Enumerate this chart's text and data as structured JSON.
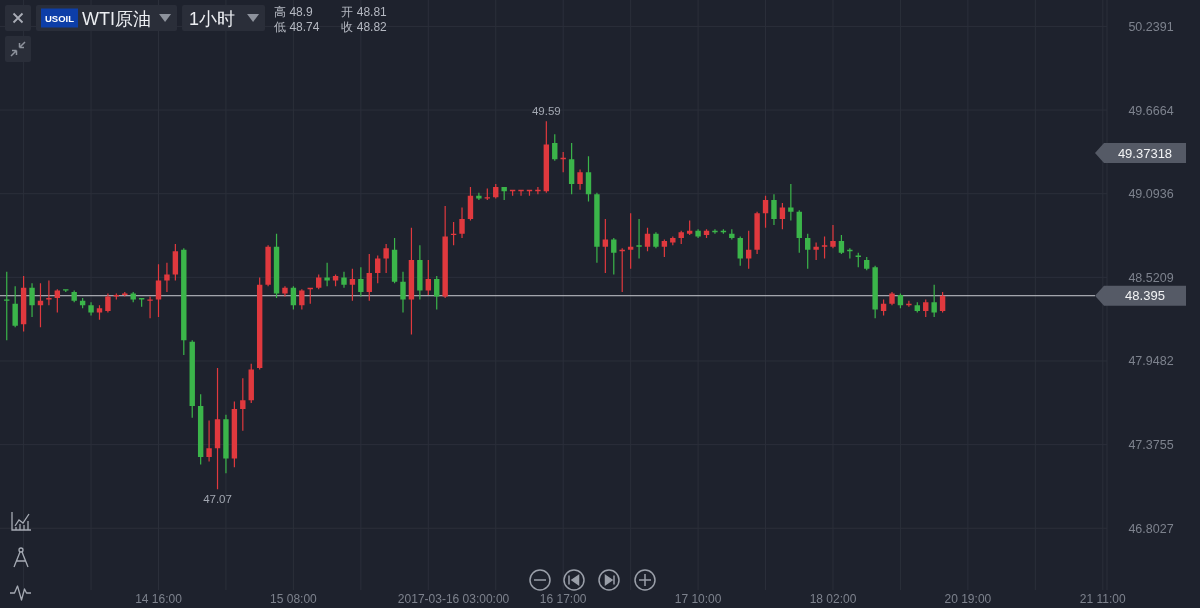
{
  "chart_data": {
    "type": "candlestick",
    "title": "WTI原油",
    "subtitle": "1小时",
    "categories": [
      null,
      null,
      null,
      null,
      null,
      null,
      null,
      null,
      null,
      null,
      null,
      null,
      null,
      null,
      null,
      null,
      null,
      null,
      "14 16:00",
      null,
      null,
      null,
      null,
      null,
      null,
      null,
      null,
      null,
      null,
      null,
      null,
      null,
      null,
      null,
      "15 08:00",
      null,
      null,
      null,
      null,
      null,
      null,
      null,
      null,
      null,
      null,
      null,
      null,
      null,
      null,
      null,
      null,
      null,
      null,
      "2017-03-16 03:00:00",
      null,
      null,
      null,
      null,
      null,
      null,
      null,
      null,
      null,
      null,
      null,
      null,
      "16 17:00",
      null,
      null,
      null,
      null,
      null,
      null,
      null,
      null,
      null,
      null,
      null,
      null,
      null,
      null,
      null,
      "17 10:00",
      null,
      null,
      null,
      null,
      null,
      null,
      null,
      null,
      null,
      null,
      null,
      null,
      null,
      null,
      null,
      "18 02:00",
      null,
      null,
      null,
      null,
      null,
      null,
      null,
      null,
      null,
      null,
      null,
      null,
      null,
      null,
      null,
      "20 19:00",
      null,
      null,
      null,
      null,
      null,
      null,
      null,
      null,
      null,
      null,
      null,
      null,
      null,
      null,
      null,
      "21 11:00"
    ],
    "ohlc": [
      [
        48.37,
        48.56,
        48.09,
        48.36
      ],
      [
        48.34,
        48.46,
        48.18,
        48.19
      ],
      [
        48.2,
        48.53,
        48.15,
        48.45
      ],
      [
        48.45,
        48.48,
        48.25,
        48.33
      ],
      [
        48.33,
        48.48,
        48.18,
        48.36
      ],
      [
        48.37,
        48.5,
        48.33,
        48.38
      ],
      [
        48.38,
        48.44,
        48.28,
        48.43
      ],
      [
        48.44,
        48.44,
        48.42,
        48.43
      ],
      [
        48.42,
        48.43,
        48.35,
        48.36
      ],
      [
        48.36,
        48.38,
        48.31,
        48.33
      ],
      [
        48.33,
        48.35,
        48.26,
        48.28
      ],
      [
        48.28,
        48.33,
        48.23,
        48.31
      ],
      [
        48.29,
        48.41,
        48.28,
        48.39
      ],
      [
        48.39,
        48.41,
        48.37,
        48.4
      ],
      [
        48.4,
        48.42,
        48.39,
        48.41
      ],
      [
        48.41,
        48.42,
        48.35,
        48.37
      ],
      [
        48.38,
        48.38,
        48.32,
        48.37
      ],
      [
        48.36,
        48.39,
        48.24,
        48.37
      ],
      [
        48.37,
        48.61,
        48.25,
        48.5
      ],
      [
        48.5,
        48.62,
        48.42,
        48.54
      ],
      [
        48.54,
        48.75,
        48.5,
        48.7
      ],
      [
        48.71,
        48.72,
        47.99,
        48.09
      ],
      [
        48.08,
        48.09,
        47.56,
        47.64
      ],
      [
        47.64,
        47.72,
        47.24,
        47.29
      ],
      [
        47.29,
        47.54,
        47.26,
        47.35
      ],
      [
        47.35,
        47.9,
        47.07,
        47.55
      ],
      [
        47.55,
        47.58,
        47.18,
        47.28
      ],
      [
        47.28,
        47.67,
        47.22,
        47.62
      ],
      [
        47.62,
        47.83,
        47.47,
        47.68
      ],
      [
        47.68,
        47.93,
        47.66,
        47.89
      ],
      [
        47.9,
        48.52,
        47.89,
        48.47
      ],
      [
        48.47,
        48.74,
        48.46,
        48.73
      ],
      [
        48.73,
        48.82,
        48.38,
        48.41
      ],
      [
        48.41,
        48.46,
        48.39,
        48.45
      ],
      [
        48.45,
        48.46,
        48.3,
        48.33
      ],
      [
        48.33,
        48.44,
        48.3,
        48.43
      ],
      [
        48.44,
        48.45,
        48.34,
        48.45
      ],
      [
        48.45,
        48.54,
        48.44,
        48.52
      ],
      [
        48.52,
        48.62,
        48.46,
        48.5
      ],
      [
        48.5,
        48.54,
        48.46,
        48.53
      ],
      [
        48.52,
        48.56,
        48.45,
        48.47
      ],
      [
        48.47,
        48.58,
        48.36,
        48.51
      ],
      [
        48.51,
        48.59,
        48.39,
        48.42
      ],
      [
        48.42,
        48.68,
        48.36,
        48.55
      ],
      [
        48.55,
        48.67,
        48.48,
        48.65
      ],
      [
        48.65,
        48.75,
        48.55,
        48.72
      ],
      [
        48.71,
        48.79,
        48.48,
        48.49
      ],
      [
        48.49,
        48.56,
        48.28,
        48.37
      ],
      [
        48.37,
        48.86,
        48.13,
        48.64
      ],
      [
        48.64,
        48.74,
        48.37,
        48.43
      ],
      [
        48.43,
        48.64,
        48.4,
        48.51
      ],
      [
        48.51,
        48.53,
        48.3,
        48.39
      ],
      [
        48.39,
        49.01,
        48.38,
        48.8
      ],
      [
        48.81,
        48.9,
        48.74,
        48.82
      ],
      [
        48.82,
        49.0,
        48.79,
        48.92
      ],
      [
        48.92,
        49.14,
        48.91,
        49.08
      ],
      [
        49.08,
        49.1,
        49.05,
        49.06
      ],
      [
        49.06,
        49.13,
        49.05,
        49.07
      ],
      [
        49.07,
        49.16,
        49.06,
        49.14
      ],
      [
        49.14,
        49.14,
        49.05,
        49.11
      ],
      [
        49.11,
        49.12,
        49.08,
        49.12
      ],
      [
        49.11,
        49.12,
        49.08,
        49.12
      ],
      [
        49.11,
        49.12,
        49.08,
        49.12
      ],
      [
        49.11,
        49.14,
        49.09,
        49.12
      ],
      [
        49.11,
        49.59,
        49.1,
        49.43
      ],
      [
        49.44,
        49.5,
        49.32,
        49.33
      ],
      [
        49.33,
        49.38,
        49.24,
        49.34
      ],
      [
        49.33,
        49.44,
        49.09,
        49.16
      ],
      [
        49.16,
        49.26,
        49.12,
        49.24
      ],
      [
        49.24,
        49.35,
        49.04,
        49.09
      ],
      [
        49.09,
        49.1,
        48.62,
        48.73
      ],
      [
        48.73,
        48.92,
        48.55,
        48.78
      ],
      [
        48.78,
        48.79,
        48.54,
        48.69
      ],
      [
        48.7,
        48.72,
        48.42,
        48.71
      ],
      [
        48.71,
        48.96,
        48.58,
        48.73
      ],
      [
        48.74,
        48.92,
        48.65,
        48.73
      ],
      [
        48.73,
        48.86,
        48.7,
        48.82
      ],
      [
        48.82,
        48.83,
        48.72,
        48.73
      ],
      [
        48.73,
        48.78,
        48.66,
        48.77
      ],
      [
        48.76,
        48.8,
        48.74,
        48.79
      ],
      [
        48.79,
        48.84,
        48.75,
        48.83
      ],
      [
        48.82,
        48.91,
        48.81,
        48.84
      ],
      [
        48.84,
        48.85,
        48.79,
        48.8
      ],
      [
        48.81,
        48.85,
        48.79,
        48.84
      ],
      [
        48.84,
        48.85,
        48.82,
        48.83
      ],
      [
        48.84,
        48.85,
        48.82,
        48.83
      ],
      [
        48.82,
        48.85,
        48.78,
        48.79
      ],
      [
        48.79,
        48.8,
        48.6,
        48.65
      ],
      [
        48.65,
        48.84,
        48.58,
        48.71
      ],
      [
        48.71,
        48.97,
        48.68,
        48.96
      ],
      [
        48.96,
        49.08,
        48.86,
        49.05
      ],
      [
        49.05,
        49.09,
        48.88,
        48.92
      ],
      [
        48.92,
        49.03,
        48.85,
        49.0
      ],
      [
        49.0,
        49.16,
        48.91,
        48.97
      ],
      [
        48.97,
        48.98,
        48.69,
        48.79
      ],
      [
        48.79,
        48.82,
        48.58,
        48.71
      ],
      [
        48.71,
        48.76,
        48.64,
        48.73
      ],
      [
        48.73,
        48.8,
        48.65,
        48.74
      ],
      [
        48.73,
        48.88,
        48.72,
        48.77
      ],
      [
        48.77,
        48.81,
        48.68,
        48.69
      ],
      [
        48.71,
        48.72,
        48.65,
        48.7
      ],
      [
        48.67,
        48.69,
        48.59,
        48.66
      ],
      [
        48.64,
        48.66,
        48.57,
        48.58
      ],
      [
        48.59,
        48.6,
        48.24,
        48.3
      ],
      [
        48.29,
        48.37,
        48.26,
        48.34
      ],
      [
        48.34,
        48.42,
        48.33,
        48.41
      ],
      [
        48.4,
        48.41,
        48.31,
        48.33
      ],
      [
        48.33,
        48.36,
        48.32,
        48.34
      ],
      [
        48.33,
        48.35,
        48.28,
        48.29
      ],
      [
        48.29,
        48.37,
        48.25,
        48.35
      ],
      [
        48.35,
        48.47,
        48.25,
        48.28
      ],
      [
        48.29,
        48.42,
        48.28,
        48.395
      ],
      null,
      null,
      null,
      null,
      null,
      null,
      null,
      null,
      null,
      null,
      null,
      null,
      null,
      null,
      null,
      null,
      null,
      null,
      null
    ],
    "colors": [
      "#3bb54a",
      "#3bb54a",
      "#e0393e",
      "#3bb54a",
      "#e0393e",
      "#e0393e",
      "#e0393e",
      "#3bb54a",
      "#3bb54a",
      "#3bb54a",
      "#3bb54a",
      "#e0393e",
      "#e0393e",
      "#e0393e",
      "#e0393e",
      "#3bb54a",
      "#3bb54a",
      "#e0393e",
      "#e0393e",
      "#e0393e",
      "#e0393e",
      "#3bb54a",
      "#3bb54a",
      "#3bb54a",
      "#e0393e",
      "#e0393e",
      "#3bb54a",
      "#e0393e",
      "#e0393e",
      "#e0393e",
      "#e0393e",
      "#e0393e",
      "#3bb54a",
      "#e0393e",
      "#3bb54a",
      "#e0393e",
      "#e0393e",
      "#e0393e",
      "#3bb54a",
      "#e0393e",
      "#3bb54a",
      "#e0393e",
      "#3bb54a",
      "#e0393e",
      "#e0393e",
      "#e0393e",
      "#3bb54a",
      "#3bb54a",
      "#e0393e",
      "#3bb54a",
      "#e0393e",
      "#3bb54a",
      "#e0393e",
      "#e0393e",
      "#e0393e",
      "#e0393e",
      "#3bb54a",
      "#e0393e",
      "#e0393e",
      "#3bb54a",
      "#e0393e",
      "#e0393e",
      "#e0393e",
      "#e0393e",
      "#e0393e",
      "#3bb54a",
      "#e0393e",
      "#3bb54a",
      "#e0393e",
      "#3bb54a",
      "#3bb54a",
      "#e0393e",
      "#3bb54a",
      "#e0393e",
      "#e0393e",
      "#3bb54a",
      "#e0393e",
      "#3bb54a",
      "#e0393e",
      "#e0393e",
      "#e0393e",
      "#e0393e",
      "#3bb54a",
      "#e0393e",
      "#3bb54a",
      "#3bb54a",
      "#3bb54a",
      "#3bb54a",
      "#e0393e",
      "#e0393e",
      "#e0393e",
      "#3bb54a",
      "#e0393e",
      "#3bb54a",
      "#3bb54a",
      "#3bb54a",
      "#e0393e",
      "#e0393e",
      "#e0393e",
      "#3bb54a",
      "#3bb54a",
      "#3bb54a",
      "#3bb54a",
      "#3bb54a",
      "#e0393e",
      "#e0393e",
      "#3bb54a",
      "#e0393e",
      "#3bb54a",
      "#e0393e",
      "#3bb54a",
      "#e0393e",
      null,
      null,
      null,
      null,
      null,
      null,
      null,
      null,
      null,
      null,
      null,
      null,
      null,
      null,
      null,
      null,
      null,
      null,
      null
    ],
    "ylim": [
      46.38,
      50.42
    ],
    "yticks": [
      46.8027,
      47.3755,
      47.9482,
      48.5209,
      49.0936,
      49.6664,
      50.2391
    ],
    "grid": true,
    "ref_lines": [
      {
        "axis": "y",
        "value": 48.395,
        "label": "48.395",
        "color": "#c9cbd0"
      }
    ],
    "annotations": [
      "USOIL",
      "高 48.9",
      "低 48.74",
      "开 48.81",
      "收 48.82",
      "49.37318",
      {
        "text": "49.59",
        "y": 49.59
      },
      {
        "text": "47.07",
        "y": 47.07
      }
    ]
  }
}
